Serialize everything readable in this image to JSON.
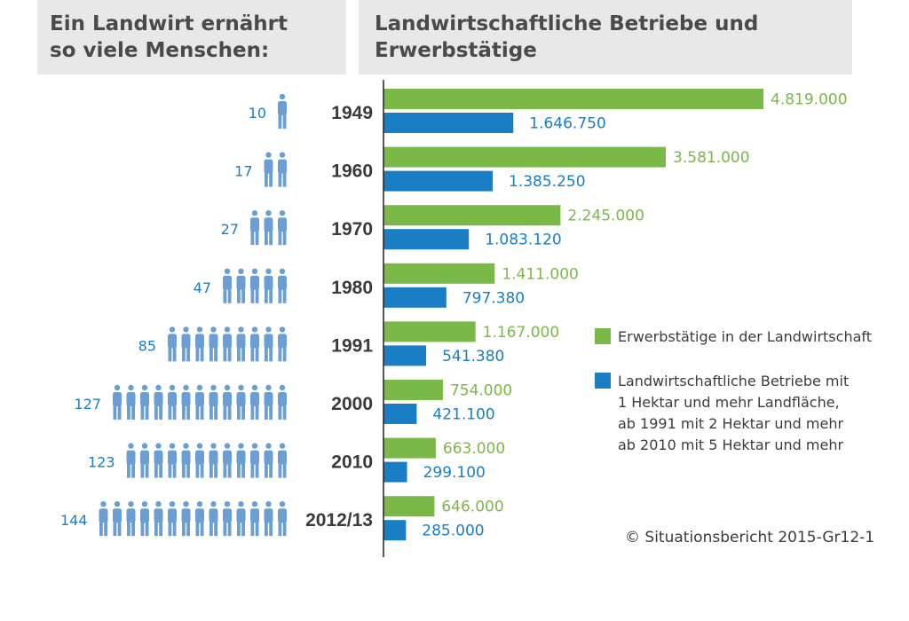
{
  "header": {
    "left_title_line1": "Ein Landwirt ernährt",
    "left_title_line2": "so viele Menschen:",
    "right_title_line1": "Landwirtschaftliche Betriebe und",
    "right_title_line2": "Erwerbstätige"
  },
  "legend": {
    "series1": "Erwerbstätige in der Landwirtschaft",
    "series2_line1": "Landwirtschaftliche Betriebe mit",
    "series2_line2": "1 Hektar und mehr Landfläche,",
    "series2_line3": "ab 1991 mit 2 Hektar und mehr",
    "series2_line4": "ab 2010 mit 5 Hektar und mehr"
  },
  "source": "© Situationsbericht 2015-Gr12-1",
  "colors": {
    "green": "#7ab848",
    "blue": "#1a7ec4",
    "person": "#6b9fd4",
    "text": "#3c3c3c"
  },
  "chart_data": {
    "type": "bar",
    "orientation": "horizontal",
    "title": "Landwirtschaftliche Betriebe und Erwerbstätige",
    "categories": [
      "1949",
      "1960",
      "1970",
      "1980",
      "1991",
      "2000",
      "2010",
      "2012/13"
    ],
    "series": [
      {
        "name": "Erwerbstätige in der Landwirtschaft",
        "color": "#7ab848",
        "values": [
          4819000,
          3581000,
          2245000,
          1411000,
          1167000,
          754000,
          663000,
          646000
        ],
        "labels": [
          "4.819.000",
          "3.581.000",
          "2.245.000",
          "1.411.000",
          "1.167.000",
          "754.000",
          "663.000",
          "646.000"
        ]
      },
      {
        "name": "Landwirtschaftliche Betriebe",
        "color": "#1a7ec4",
        "values": [
          1646750,
          1385250,
          1083120,
          797380,
          541380,
          421100,
          299100,
          285000
        ],
        "labels": [
          "1.646.750",
          "1.385.250",
          "1.083.120",
          "797.380",
          "541.380",
          "421.100",
          "299.100",
          "285.000"
        ]
      }
    ],
    "xlim": [
      0,
      4819000
    ],
    "people_fed": {
      "title": "Ein Landwirt ernährt so viele Menschen:",
      "values": [
        10,
        17,
        27,
        47,
        85,
        127,
        123,
        144
      ],
      "icon_counts": [
        1,
        2,
        3,
        5,
        9,
        13,
        12,
        14
      ]
    }
  }
}
